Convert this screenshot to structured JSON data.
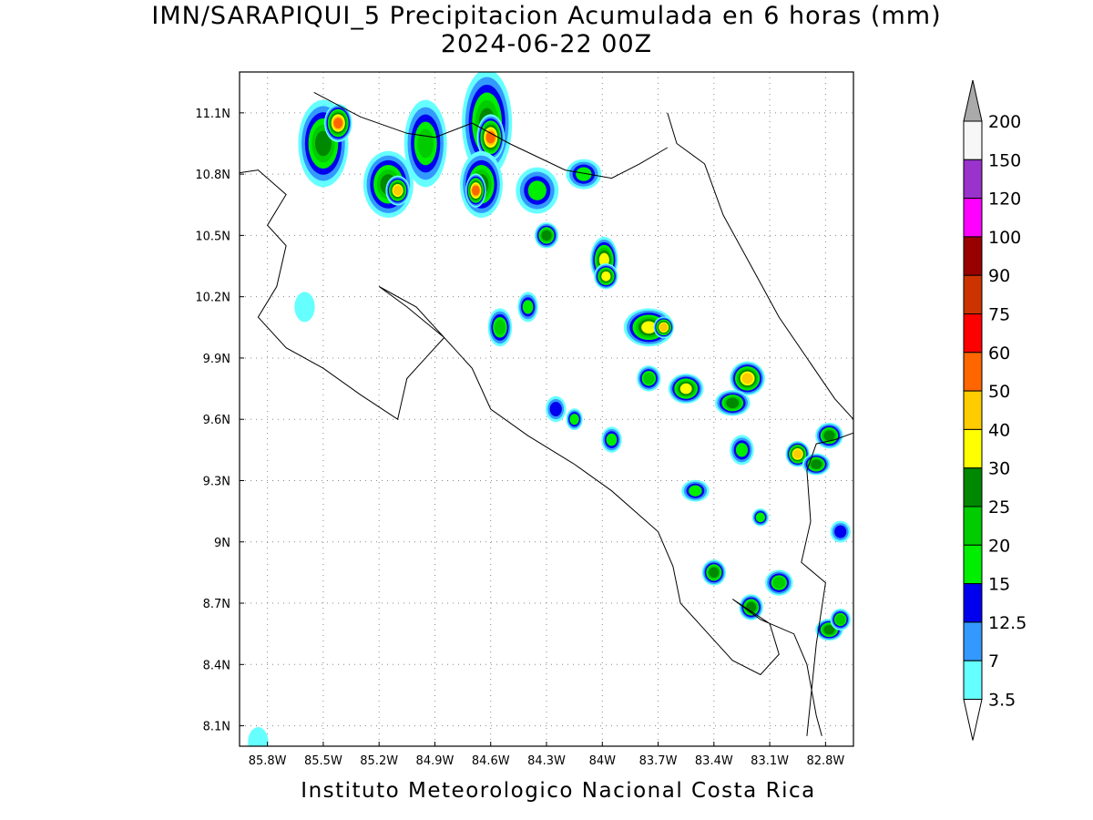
{
  "title": {
    "line1": "IMN/SARAPIQUI_5 Precipitacion Acumulada en 6 horas (mm)",
    "line2": "2024-06-22 00Z"
  },
  "footer": "Instituto Meteorologico Nacional Costa Rica",
  "map": {
    "lon_range": [
      -85.95,
      -82.65
    ],
    "lat_range": [
      8.0,
      11.3
    ],
    "lon_ticks": [
      {
        "value": -85.8,
        "label": "85.8W"
      },
      {
        "value": -85.5,
        "label": "85.5W"
      },
      {
        "value": -85.2,
        "label": "85.2W"
      },
      {
        "value": -84.9,
        "label": "84.9W"
      },
      {
        "value": -84.6,
        "label": "84.6W"
      },
      {
        "value": -84.3,
        "label": "84.3W"
      },
      {
        "value": -84.0,
        "label": "84W"
      },
      {
        "value": -83.7,
        "label": "83.7W"
      },
      {
        "value": -83.4,
        "label": "83.4W"
      },
      {
        "value": -83.1,
        "label": "83.1W"
      },
      {
        "value": -82.8,
        "label": "82.8W"
      }
    ],
    "lat_ticks": [
      {
        "value": 11.1,
        "label": "11.1N"
      },
      {
        "value": 10.8,
        "label": "10.8N"
      },
      {
        "value": 10.5,
        "label": "10.5N"
      },
      {
        "value": 10.2,
        "label": "10.2N"
      },
      {
        "value": 9.9,
        "label": "9.9N"
      },
      {
        "value": 9.6,
        "label": "9.6N"
      },
      {
        "value": 9.3,
        "label": "9.3N"
      },
      {
        "value": 9.0,
        "label": "9N"
      },
      {
        "value": 8.7,
        "label": "8.7N"
      },
      {
        "value": 8.4,
        "label": "8.4N"
      },
      {
        "value": 8.1,
        "label": "8.1N"
      }
    ],
    "gridlines": "dotted",
    "coastline": [
      [
        -86.0,
        10.8
      ],
      [
        -85.85,
        10.82
      ],
      [
        -85.7,
        10.7
      ],
      [
        -85.8,
        10.55
      ],
      [
        -85.7,
        10.45
      ],
      [
        -85.75,
        10.25
      ],
      [
        -85.85,
        10.1
      ],
      [
        -85.7,
        9.95
      ],
      [
        -85.5,
        9.85
      ],
      [
        -85.3,
        9.72
      ],
      [
        -85.1,
        9.6
      ],
      [
        -85.05,
        9.8
      ],
      [
        -84.95,
        9.9
      ],
      [
        -84.85,
        10.0
      ],
      [
        -85.05,
        10.15
      ],
      [
        -85.2,
        10.25
      ],
      [
        -85.0,
        10.15
      ],
      [
        -84.8,
        9.95
      ],
      [
        -84.7,
        9.85
      ],
      [
        -84.6,
        9.65
      ],
      [
        -84.4,
        9.52
      ],
      [
        -84.15,
        9.38
      ],
      [
        -83.95,
        9.25
      ],
      [
        -83.7,
        9.05
      ],
      [
        -83.62,
        8.88
      ],
      [
        -83.58,
        8.7
      ],
      [
        -83.4,
        8.52
      ],
      [
        -83.3,
        8.42
      ],
      [
        -83.15,
        8.35
      ],
      [
        -83.05,
        8.45
      ],
      [
        -83.1,
        8.6
      ],
      [
        -83.3,
        8.72
      ],
      [
        -83.15,
        8.62
      ],
      [
        -82.97,
        8.55
      ],
      [
        -82.9,
        8.4
      ],
      [
        -82.85,
        8.15
      ],
      [
        -82.82,
        8.05
      ]
    ],
    "coastline_caribbean": [
      [
        -83.65,
        11.1
      ],
      [
        -83.6,
        10.95
      ],
      [
        -83.45,
        10.85
      ],
      [
        -83.35,
        10.6
      ],
      [
        -83.2,
        10.35
      ],
      [
        -83.05,
        10.1
      ],
      [
        -82.9,
        9.9
      ],
      [
        -82.75,
        9.7
      ],
      [
        -82.6,
        9.55
      ]
    ],
    "border_north": [
      [
        -85.55,
        11.2
      ],
      [
        -85.3,
        11.08
      ],
      [
        -85.05,
        11.0
      ],
      [
        -84.9,
        10.98
      ],
      [
        -84.7,
        11.05
      ],
      [
        -84.5,
        10.95
      ],
      [
        -84.2,
        10.82
      ],
      [
        -83.95,
        10.78
      ],
      [
        -83.8,
        10.85
      ],
      [
        -83.65,
        10.93
      ]
    ],
    "border_panama": [
      [
        -82.6,
        9.55
      ],
      [
        -82.75,
        9.5
      ],
      [
        -82.85,
        9.48
      ],
      [
        -82.9,
        9.35
      ],
      [
        -82.88,
        9.1
      ],
      [
        -82.93,
        8.9
      ],
      [
        -82.8,
        8.8
      ],
      [
        -82.85,
        8.5
      ],
      [
        -82.9,
        8.05
      ]
    ],
    "colors": {
      "level_3_5": "#66ffff",
      "level_7": "#3399ff",
      "level_12_5": "#0000ee",
      "level_15": "#00ee00",
      "level_20": "#00cc00",
      "level_25": "#008800",
      "level_30": "#ffff00",
      "level_40": "#ffcc00",
      "level_50": "#ff6600",
      "level_60": "#ff0000",
      "level_75": "#cc3300",
      "level_90": "#990000",
      "level_100": "#ff00ff",
      "level_120": "#9933cc",
      "level_150": "#f7f7f7",
      "level_200": "#aaaaaa"
    },
    "cells": [
      {
        "lon": -85.5,
        "lat": 10.95,
        "rx": 0.12,
        "ry": 0.2,
        "level": 6
      },
      {
        "lon": -85.42,
        "lat": 11.05,
        "rx": 0.06,
        "ry": 0.08,
        "level": 9
      },
      {
        "lon": -85.15,
        "lat": 10.75,
        "rx": 0.12,
        "ry": 0.15,
        "level": 6
      },
      {
        "lon": -85.1,
        "lat": 10.72,
        "rx": 0.05,
        "ry": 0.06,
        "level": 8
      },
      {
        "lon": -84.95,
        "lat": 10.95,
        "rx": 0.1,
        "ry": 0.2,
        "level": 5
      },
      {
        "lon": -84.62,
        "lat": 11.05,
        "rx": 0.12,
        "ry": 0.25,
        "level": 6
      },
      {
        "lon": -84.6,
        "lat": 10.98,
        "rx": 0.06,
        "ry": 0.1,
        "level": 9
      },
      {
        "lon": -84.65,
        "lat": 10.75,
        "rx": 0.1,
        "ry": 0.15,
        "level": 6
      },
      {
        "lon": -84.68,
        "lat": 10.72,
        "rx": 0.04,
        "ry": 0.07,
        "level": 9
      },
      {
        "lon": -84.35,
        "lat": 10.72,
        "rx": 0.1,
        "ry": 0.1,
        "level": 4
      },
      {
        "lon": -84.1,
        "lat": 10.8,
        "rx": 0.08,
        "ry": 0.06,
        "level": 4
      },
      {
        "lon": -84.3,
        "lat": 10.5,
        "rx": 0.05,
        "ry": 0.05,
        "level": 6
      },
      {
        "lon": -83.99,
        "lat": 10.38,
        "rx": 0.06,
        "ry": 0.1,
        "level": 7
      },
      {
        "lon": -83.98,
        "lat": 10.3,
        "rx": 0.05,
        "ry": 0.05,
        "level": 7
      },
      {
        "lon": -83.75,
        "lat": 10.05,
        "rx": 0.12,
        "ry": 0.08,
        "level": 7
      },
      {
        "lon": -83.67,
        "lat": 10.05,
        "rx": 0.04,
        "ry": 0.04,
        "level": 8
      },
      {
        "lon": -83.55,
        "lat": 9.75,
        "rx": 0.08,
        "ry": 0.06,
        "level": 7
      },
      {
        "lon": -83.22,
        "lat": 9.8,
        "rx": 0.08,
        "ry": 0.07,
        "level": 8
      },
      {
        "lon": -83.3,
        "lat": 9.68,
        "rx": 0.08,
        "ry": 0.05,
        "level": 6
      },
      {
        "lon": -82.95,
        "lat": 9.43,
        "rx": 0.05,
        "ry": 0.05,
        "level": 8
      },
      {
        "lon": -82.78,
        "lat": 9.52,
        "rx": 0.06,
        "ry": 0.05,
        "level": 6
      },
      {
        "lon": -82.85,
        "lat": 9.38,
        "rx": 0.06,
        "ry": 0.04,
        "level": 6
      },
      {
        "lon": -82.78,
        "lat": 8.57,
        "rx": 0.06,
        "ry": 0.04,
        "level": 6
      },
      {
        "lon": -83.4,
        "lat": 8.85,
        "rx": 0.05,
        "ry": 0.05,
        "level": 6
      },
      {
        "lon": -83.2,
        "lat": 8.68,
        "rx": 0.05,
        "ry": 0.05,
        "level": 6
      },
      {
        "lon": -83.05,
        "lat": 8.8,
        "rx": 0.06,
        "ry": 0.05,
        "level": 5
      },
      {
        "lon": -83.5,
        "lat": 9.25,
        "rx": 0.06,
        "ry": 0.04,
        "level": 4
      },
      {
        "lon": -83.25,
        "lat": 9.45,
        "rx": 0.05,
        "ry": 0.06,
        "level": 4
      },
      {
        "lon": -84.25,
        "lat": 9.65,
        "rx": 0.04,
        "ry": 0.05,
        "level": 3
      },
      {
        "lon": -84.55,
        "lat": 10.05,
        "rx": 0.05,
        "ry": 0.08,
        "level": 5
      },
      {
        "lon": -84.4,
        "lat": 10.15,
        "rx": 0.04,
        "ry": 0.06,
        "level": 4
      },
      {
        "lon": -85.6,
        "lat": 10.15,
        "rx": 0.04,
        "ry": 0.06,
        "level": 1
      },
      {
        "lon": -83.15,
        "lat": 9.12,
        "rx": 0.03,
        "ry": 0.03,
        "level": 4
      },
      {
        "lon": -82.72,
        "lat": 9.05,
        "rx": 0.04,
        "ry": 0.04,
        "level": 3
      },
      {
        "lon": -82.72,
        "lat": 8.62,
        "rx": 0.04,
        "ry": 0.04,
        "level": 5
      },
      {
        "lon": -83.75,
        "lat": 9.8,
        "rx": 0.05,
        "ry": 0.05,
        "level": 5
      },
      {
        "lon": -83.95,
        "lat": 9.5,
        "rx": 0.04,
        "ry": 0.05,
        "level": 4
      },
      {
        "lon": -84.15,
        "lat": 9.6,
        "rx": 0.03,
        "ry": 0.04,
        "level": 4
      },
      {
        "lon": -85.85,
        "lat": 8.02,
        "rx": 0.04,
        "ry": 0.06,
        "level": 1
      }
    ]
  },
  "legend": {
    "labels": [
      "200",
      "150",
      "120",
      "100",
      "90",
      "75",
      "60",
      "50",
      "40",
      "30",
      "25",
      "20",
      "15",
      "12.5",
      "7",
      "3.5"
    ],
    "colors": [
      "#f7f7f7",
      "#9933cc",
      "#ff00ff",
      "#990000",
      "#cc3300",
      "#ff0000",
      "#ff6600",
      "#ffcc00",
      "#ffff00",
      "#008800",
      "#00cc00",
      "#00ee00",
      "#0000ee",
      "#3399ff",
      "#66ffff"
    ],
    "top_arrow_color": "#aaaaaa",
    "bottom_arrow_color": "#ffffff"
  }
}
